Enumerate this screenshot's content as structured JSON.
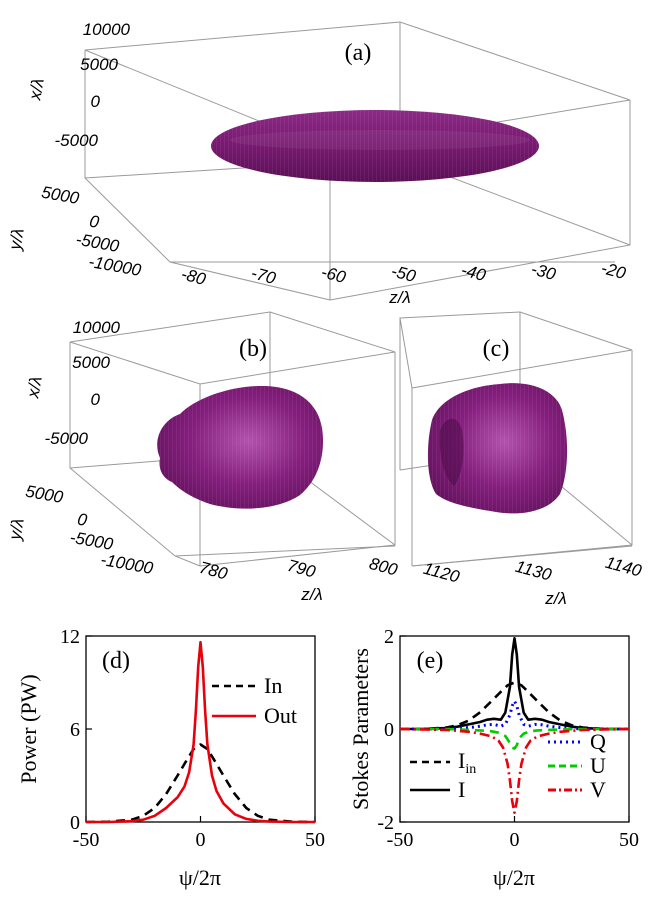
{
  "colors": {
    "body": "#7b1a73",
    "body_light": "#a440a0",
    "body_dark": "#4a0b45",
    "in": "#000000",
    "out": "#e8000b",
    "q": "#0000ff",
    "u": "#00cc00",
    "v": "#e8000b",
    "i": "#000000"
  },
  "panel_a": {
    "label": "(a)",
    "x_axis_label": "x/λ",
    "y_axis_label": "y/λ",
    "z_axis_label": "z/λ",
    "x_ticks": [
      "10000",
      "5000",
      "0",
      "-5000"
    ],
    "y_ticks": [
      "5000",
      "0",
      "-5000",
      "-10000"
    ],
    "z_ticks": [
      "-80",
      "-70",
      "-60",
      "-50",
      "-40",
      "-30",
      "-20"
    ]
  },
  "panel_b": {
    "label": "(b)",
    "x_axis_label": "x/λ",
    "y_axis_label": "y/λ",
    "z_axis_label": "z/λ",
    "x_ticks": [
      "10000",
      "5000",
      "0",
      "-5000"
    ],
    "y_ticks": [
      "5000",
      "0",
      "-5000",
      "-10000"
    ],
    "z_ticks": [
      "780",
      "790",
      "800"
    ]
  },
  "panel_c": {
    "label": "(c)",
    "z_axis_label": "z/λ",
    "z_ticks": [
      "1120",
      "1130",
      "1140"
    ]
  },
  "chart_data": [
    {
      "type": "line",
      "panel": "(d)",
      "title": "(d)",
      "xlabel": "ψ/2π",
      "ylabel": "Power (PW)",
      "xlim": [
        -50,
        50
      ],
      "ylim": [
        0,
        12
      ],
      "xticks": [
        -50,
        0,
        50
      ],
      "yticks": [
        0,
        6,
        12
      ],
      "legend_position": "top-right",
      "series": [
        {
          "name": "In",
          "style": "dashed",
          "color": "#000000",
          "x": [
            -50,
            -40,
            -30,
            -25,
            -20,
            -15,
            -10,
            -6,
            -3,
            0,
            3,
            6,
            10,
            15,
            20,
            25,
            30,
            40,
            50
          ],
          "y": [
            0,
            0.02,
            0.15,
            0.4,
            0.9,
            1.8,
            3.0,
            4.0,
            4.7,
            5.0,
            4.7,
            4.0,
            3.0,
            1.8,
            0.9,
            0.4,
            0.15,
            0.02,
            0
          ]
        },
        {
          "name": "Out",
          "style": "solid",
          "color": "#e8000b",
          "x": [
            -50,
            -40,
            -30,
            -25,
            -20,
            -15,
            -10,
            -7,
            -5,
            -3,
            -2,
            -1,
            0,
            1,
            2,
            3,
            5,
            7,
            10,
            15,
            20,
            25,
            30,
            40,
            50
          ],
          "y": [
            0,
            0,
            0.05,
            0.15,
            0.4,
            0.9,
            1.6,
            2.3,
            3.2,
            5.0,
            7.2,
            10.0,
            11.6,
            10.0,
            7.2,
            5.0,
            3.0,
            2.0,
            1.2,
            0.5,
            0.2,
            0.08,
            0.03,
            0,
            0
          ]
        }
      ]
    },
    {
      "type": "line",
      "panel": "(e)",
      "title": "(e)",
      "xlabel": "ψ/2π",
      "ylabel": "Stokes Parameters",
      "xlim": [
        -50,
        50
      ],
      "ylim": [
        -2,
        2
      ],
      "xticks": [
        -50,
        0,
        50
      ],
      "yticks": [
        -2,
        0,
        2
      ],
      "legend_entries": [
        "I",
        "in",
        "I",
        "Q",
        "U",
        "V"
      ],
      "series": [
        {
          "name": "I_in",
          "style": "dashed",
          "color": "#000000",
          "x": [
            -50,
            -40,
            -30,
            -25,
            -20,
            -15,
            -10,
            -6,
            -3,
            0,
            3,
            6,
            10,
            15,
            20,
            25,
            30,
            40,
            50
          ],
          "y": [
            0,
            0,
            0.03,
            0.08,
            0.18,
            0.36,
            0.6,
            0.8,
            0.94,
            1.0,
            0.94,
            0.8,
            0.6,
            0.36,
            0.18,
            0.08,
            0.03,
            0,
            0
          ]
        },
        {
          "name": "I",
          "style": "solid",
          "color": "#000000",
          "x": [
            -50,
            -40,
            -30,
            -25,
            -20,
            -15,
            -12,
            -9,
            -6,
            -4,
            -2,
            -1,
            0,
            1,
            2,
            4,
            6,
            9,
            12,
            15,
            20,
            25,
            30,
            40,
            50
          ],
          "y": [
            0,
            0,
            0.02,
            0.05,
            0.1,
            0.15,
            0.2,
            0.22,
            0.2,
            0.35,
            0.9,
            1.6,
            1.95,
            1.6,
            0.9,
            0.35,
            0.2,
            0.22,
            0.2,
            0.15,
            0.1,
            0.05,
            0.02,
            0,
            0
          ]
        },
        {
          "name": "Q",
          "style": "dotted",
          "color": "#0000ff",
          "x": [
            -50,
            -30,
            -20,
            -15,
            -12,
            -9,
            -6,
            -4,
            -2,
            -1,
            0,
            1,
            2,
            4,
            6,
            9,
            12,
            15,
            20,
            30,
            50
          ],
          "y": [
            0,
            0,
            0.03,
            0.06,
            0.09,
            0.1,
            0.06,
            0.1,
            0.3,
            0.5,
            0.6,
            0.5,
            0.3,
            0.1,
            0.06,
            0.1,
            0.09,
            0.06,
            0.03,
            0,
            0
          ]
        },
        {
          "name": "U",
          "style": "dashed",
          "color": "#00cc00",
          "x": [
            -50,
            -30,
            -20,
            -15,
            -10,
            -7,
            -4,
            -2,
            -1,
            0,
            1,
            2,
            4,
            7,
            10,
            15,
            20,
            30,
            50
          ],
          "y": [
            0,
            0,
            -0.02,
            -0.03,
            -0.05,
            -0.08,
            -0.15,
            -0.3,
            -0.4,
            -0.42,
            -0.35,
            -0.2,
            -0.1,
            -0.05,
            -0.03,
            -0.02,
            -0.01,
            0,
            0
          ]
        },
        {
          "name": "V",
          "style": "dashdot",
          "color": "#e8000b",
          "x": [
            -50,
            -30,
            -20,
            -15,
            -10,
            -7,
            -5,
            -3,
            -2,
            -1,
            0,
            1,
            2,
            3,
            5,
            7,
            10,
            15,
            20,
            30,
            50
          ],
          "y": [
            0,
            -0.02,
            -0.06,
            -0.1,
            -0.16,
            -0.25,
            -0.4,
            -0.75,
            -1.1,
            -1.55,
            -1.8,
            -1.55,
            -1.1,
            -0.75,
            -0.4,
            -0.25,
            -0.16,
            -0.1,
            -0.06,
            -0.02,
            0
          ]
        }
      ]
    }
  ]
}
